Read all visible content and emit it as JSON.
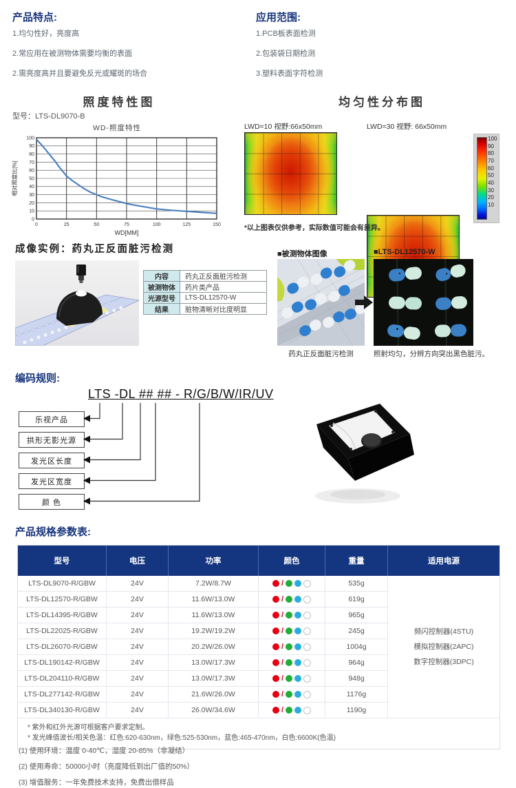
{
  "colors": {
    "navy": "#16347c",
    "header-bg": "#14357f",
    "dot-red": "#e60012",
    "dot-green": "#22ac38",
    "dot-blue": "#29abe2",
    "chart-line": "#4f81bd"
  },
  "features": {
    "title": "产品特点:",
    "items": [
      "1.均匀性好，亮度高",
      "2.常应用在被测物体需要均衡的表面",
      "2.需亮度高并且要避免反光或耀斑的场合"
    ]
  },
  "applications": {
    "title": "应用范围:",
    "items": [
      "1.PCB板表面检测",
      "2.包装袋日期检测",
      "3.塑料表面字符检测"
    ]
  },
  "charts": {
    "left_title": "照度特性图",
    "model_label": "型号：LTS-DL9070-B",
    "right_title": "均匀性分布图"
  },
  "chart_data": [
    {
      "type": "line",
      "title": "WD-照度特性",
      "xlabel": "WD[MM]",
      "ylabel": "相对照度比[%]",
      "xlim": [
        0,
        150
      ],
      "ylim": [
        0,
        100
      ],
      "xticks": [
        0,
        25,
        50,
        75,
        100,
        125,
        150
      ],
      "yticks": [
        0,
        10,
        20,
        30,
        40,
        50,
        60,
        70,
        80,
        90,
        100
      ],
      "grid": true,
      "line_color": "#4f81bd",
      "series": [
        {
          "name": "相对照度比",
          "x": [
            0,
            5,
            10,
            15,
            20,
            25,
            30,
            35,
            40,
            45,
            50,
            55,
            60,
            65,
            70,
            75,
            80,
            90,
            100,
            110,
            120,
            130,
            140,
            150
          ],
          "y": [
            98,
            90,
            81,
            72,
            62,
            53,
            47,
            42,
            37,
            33,
            30,
            27,
            25,
            23,
            21,
            19,
            17.5,
            15,
            12.5,
            11,
            10,
            9,
            8,
            7
          ]
        }
      ]
    },
    {
      "type": "heatmap",
      "title": "均匀性分布图",
      "panels": [
        {
          "label": "LWD=10 视野:66x50mm"
        },
        {
          "label": "LWD=30 视野: 66x50mm"
        }
      ],
      "colorbar_ticks": [
        100,
        90,
        80,
        70,
        60,
        50,
        40,
        30,
        20,
        10
      ],
      "value_range": [
        10,
        100
      ],
      "note": "*以上图表仅供参考，实际数值可能会有差异。"
    }
  ],
  "example": {
    "title": "成像实例：药丸正反面脏污检测",
    "info_rows": [
      {
        "label": "内容",
        "value": "药丸正反面脏污检测"
      },
      {
        "label": "被测物体",
        "value": "药片类产品"
      },
      {
        "label": "光源型号",
        "value": "LTS-DL12570-W"
      },
      {
        "label": "结果",
        "value": "脏物清晰对比度明显"
      }
    ],
    "object_image_label": "■被测物体图像",
    "object_caption": "药丸正反面脏污检测",
    "result_image_label": "■LTS-DL12570-W",
    "result_caption": "照射均匀，分辨方向突出黑色脏污。"
  },
  "coding": {
    "title": "编码规则:",
    "code": "LTS -DL ## ## - R/G/B/W/IR/UV",
    "labels": [
      "乐视产品",
      "拱形无影光源",
      "发光区长度",
      "发光区宽度",
      "颜 色"
    ]
  },
  "spec": {
    "title": "产品规格参数表:",
    "headers": [
      "型号",
      "电压",
      "功率",
      "颜色",
      "重量",
      "适用电源"
    ],
    "dot_slash": "/",
    "color_options": [
      "red",
      "green",
      "blue",
      "white"
    ],
    "rows": [
      {
        "model": "LTS-DL9070-R/GBW",
        "voltage": "24V",
        "power": "7.2W/8.7W",
        "weight": "535g"
      },
      {
        "model": "LTS-DL12570-R/GBW",
        "voltage": "24V",
        "power": "11.6W/13.0W",
        "weight": "619g"
      },
      {
        "model": "LTS-DL14395-R/GBW",
        "voltage": "24V",
        "power": "11.6W/13.0W",
        "weight": "965g"
      },
      {
        "model": "LTS-DL22025-R/GBW",
        "voltage": "24V",
        "power": "19.2W/19.2W",
        "weight": "245g"
      },
      {
        "model": "LTS-DL26070-R/GBW",
        "voltage": "24V",
        "power": "20.2W/26.0W",
        "weight": "1004g"
      },
      {
        "model": "LTS-DL190142-R/GBW",
        "voltage": "24V",
        "power": "13.0W/17.3W",
        "weight": "964g"
      },
      {
        "model": "LTS-DL204110-R/GBW",
        "voltage": "24V",
        "power": "13.0W/17.3W",
        "weight": "948g"
      },
      {
        "model": "LTS-DL277142-R/GBW",
        "voltage": "24V",
        "power": "21.6W/26.0W",
        "weight": "1176g"
      },
      {
        "model": "LTS-DL340130-R/GBW",
        "voltage": "24V",
        "power": "26.0W/34.6W",
        "weight": "1190g"
      }
    ],
    "power_supplies": [
      "频闪控制器(4STU)",
      "模拟控制器(2APC)",
      "数字控制器(3DPC)"
    ],
    "footnotes": [
      "* 紫外和红外光源可根据客户要求定制。",
      "* 发光峰值波长/相关色温：红色:620-630nm，绿色:525-530nm，蓝色:465-470nm，白色:6600K(色温)"
    ]
  },
  "notes": [
    "(1) 使用环境：温度 0-40℃，湿度 20-85%（非凝结）",
    "(2) 使用寿命：50000小时（亮度降低到出厂值的50%）",
    "(3) 增值服务：一年免费技术支持，免费出借样品"
  ]
}
